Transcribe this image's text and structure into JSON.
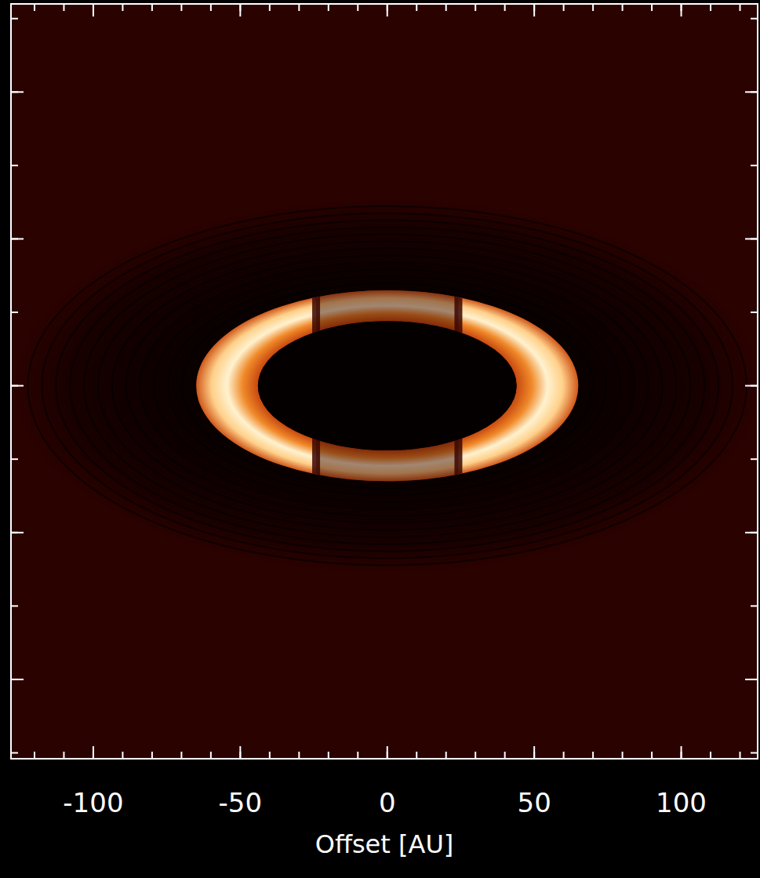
{
  "chart_data": {
    "type": "image",
    "x_label": "Offset [AU]",
    "xlim": [
      -128,
      126
    ],
    "xticks": [
      -100,
      -50,
      0,
      50,
      100
    ],
    "ylim": [
      -127,
      130
    ],
    "yticks": [
      -100,
      -50,
      0,
      50,
      100
    ],
    "tick_labels": "x",
    "ring": {
      "inner_radius": 44,
      "outer_radius": 65,
      "disk_radius": 127,
      "axis_ratio": 0.5
    }
  }
}
